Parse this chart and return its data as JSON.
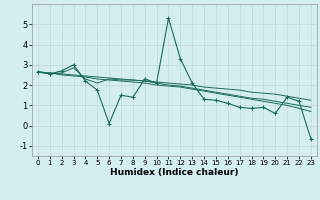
{
  "xlabel": "Humidex (Indice chaleur)",
  "background_color": "#d4edf0",
  "grid_color": "#c2d8db",
  "line_color": "#1a6b5a",
  "xlim": [
    -0.5,
    23.5
  ],
  "ylim": [
    -1.5,
    6.0
  ],
  "yticks": [
    -1,
    0,
    1,
    2,
    3,
    4,
    5
  ],
  "xticks": [
    0,
    1,
    2,
    3,
    4,
    5,
    6,
    7,
    8,
    9,
    10,
    11,
    12,
    13,
    14,
    15,
    16,
    17,
    18,
    19,
    20,
    21,
    22,
    23
  ],
  "series": [
    [
      2.65,
      2.55,
      2.7,
      3.0,
      2.2,
      1.75,
      0.1,
      1.5,
      1.4,
      2.3,
      2.1,
      5.3,
      3.3,
      2.1,
      1.3,
      1.25,
      1.1,
      0.9,
      0.85,
      0.9,
      0.6,
      1.4,
      1.2,
      -0.65
    ],
    [
      2.65,
      2.55,
      2.6,
      2.85,
      2.3,
      2.1,
      2.3,
      2.25,
      2.25,
      2.2,
      2.1,
      2.0,
      1.95,
      1.85,
      1.75,
      1.65,
      1.55,
      1.45,
      1.35,
      1.3,
      1.2,
      1.1,
      1.0,
      0.9
    ],
    [
      2.65,
      2.6,
      2.55,
      2.5,
      2.45,
      2.4,
      2.35,
      2.3,
      2.25,
      2.2,
      2.15,
      2.1,
      2.05,
      2.0,
      1.9,
      1.85,
      1.8,
      1.75,
      1.65,
      1.6,
      1.55,
      1.45,
      1.35,
      1.25
    ],
    [
      2.65,
      2.6,
      2.5,
      2.45,
      2.4,
      2.3,
      2.25,
      2.2,
      2.15,
      2.1,
      2.0,
      1.95,
      1.9,
      1.8,
      1.7,
      1.6,
      1.5,
      1.4,
      1.3,
      1.2,
      1.1,
      1.0,
      0.85,
      0.7
    ]
  ]
}
